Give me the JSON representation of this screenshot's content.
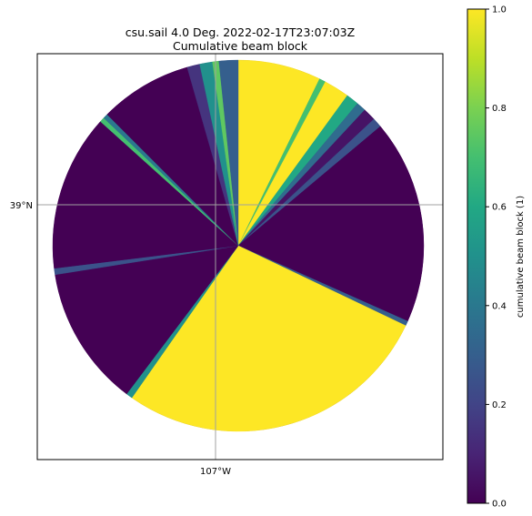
{
  "chart_data": {
    "type": "heatmap",
    "title": "csu.sail 4.0 Deg. 2022-02-17T23:07:03Z",
    "subtitle": "Cumulative beam block",
    "x_tick_labels": [
      "107°W"
    ],
    "y_tick_labels": [
      "39°N"
    ],
    "grid": true,
    "colormap": "viridis",
    "colorbar": {
      "label": "cumulative beam block (1)",
      "range": [
        0,
        1
      ],
      "ticks": [
        0.0,
        0.2,
        0.4,
        0.6,
        0.8,
        1.0
      ],
      "tick_labels": [
        "0.0",
        "0.2",
        "0.4",
        "0.6",
        "0.8",
        "1.0"
      ],
      "placement": "right"
    },
    "beam_block_sectors": [
      {
        "from_deg": 0,
        "to_deg": 26,
        "value": 1.0
      },
      {
        "from_deg": 26,
        "to_deg": 28,
        "value": 0.7
      },
      {
        "from_deg": 28,
        "to_deg": 36,
        "value": 1.0
      },
      {
        "from_deg": 36,
        "to_deg": 40,
        "value": 0.6
      },
      {
        "from_deg": 40,
        "to_deg": 43,
        "value": 0.35
      },
      {
        "from_deg": 43,
        "to_deg": 47,
        "value": 0.05
      },
      {
        "from_deg": 47,
        "to_deg": 50,
        "value": 0.25
      },
      {
        "from_deg": 50,
        "to_deg": 114,
        "value": 0.0
      },
      {
        "from_deg": 114,
        "to_deg": 115.5,
        "value": 0.3
      },
      {
        "from_deg": 115.5,
        "to_deg": 215,
        "value": 1.0
      },
      {
        "from_deg": 215,
        "to_deg": 217,
        "value": 0.5
      },
      {
        "from_deg": 217,
        "to_deg": 261,
        "value": 0.0
      },
      {
        "from_deg": 261,
        "to_deg": 263,
        "value": 0.25
      },
      {
        "from_deg": 263,
        "to_deg": 312,
        "value": 0.0
      },
      {
        "from_deg": 312,
        "to_deg": 313.5,
        "value": 0.7
      },
      {
        "from_deg": 313.5,
        "to_deg": 315,
        "value": 0.4
      },
      {
        "from_deg": 315,
        "to_deg": 344,
        "value": 0.0
      },
      {
        "from_deg": 344,
        "to_deg": 348,
        "value": 0.15
      },
      {
        "from_deg": 348,
        "to_deg": 352,
        "value": 0.5
      },
      {
        "from_deg": 352,
        "to_deg": 354,
        "value": 0.75
      },
      {
        "from_deg": 354,
        "to_deg": 360,
        "value": 0.3
      }
    ]
  }
}
